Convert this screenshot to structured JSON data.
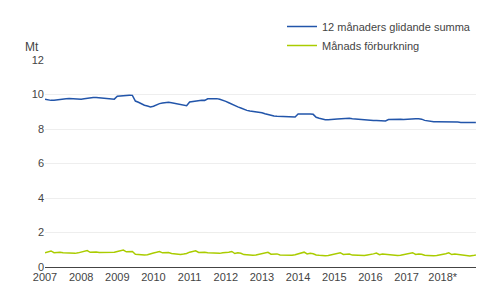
{
  "chart_data": {
    "type": "line",
    "y_label": "Mt",
    "x": [
      2007,
      2007.083333,
      2007.166667,
      2007.25,
      2007.333333,
      2007.416667,
      2007.5,
      2007.583333,
      2007.666667,
      2007.75,
      2007.833333,
      2007.916667,
      2008,
      2008.083333,
      2008.166667,
      2008.25,
      2008.333333,
      2008.416667,
      2008.5,
      2008.583333,
      2008.666667,
      2008.75,
      2008.833333,
      2008.916667,
      2009,
      2009.083333,
      2009.166667,
      2009.25,
      2009.333333,
      2009.416667,
      2009.5,
      2009.583333,
      2009.666667,
      2009.75,
      2009.833333,
      2009.916667,
      2010,
      2010.083333,
      2010.166667,
      2010.25,
      2010.333333,
      2010.416667,
      2010.5,
      2010.583333,
      2010.666667,
      2010.75,
      2010.833333,
      2010.916667,
      2011,
      2011.083333,
      2011.166667,
      2011.25,
      2011.333333,
      2011.416667,
      2011.5,
      2011.583333,
      2011.666667,
      2011.75,
      2011.833333,
      2011.916667,
      2012,
      2012.083333,
      2012.166667,
      2012.25,
      2012.333333,
      2012.416667,
      2012.5,
      2012.583333,
      2012.666667,
      2012.75,
      2012.833333,
      2012.916667,
      2013,
      2013.083333,
      2013.166667,
      2013.25,
      2013.333333,
      2013.416667,
      2013.5,
      2013.583333,
      2013.666667,
      2013.75,
      2013.833333,
      2013.916667,
      2014,
      2014.083333,
      2014.166667,
      2014.25,
      2014.333333,
      2014.416667,
      2014.5,
      2014.583333,
      2014.666667,
      2014.75,
      2014.833333,
      2014.916667,
      2015,
      2015.083333,
      2015.166667,
      2015.25,
      2015.333333,
      2015.416667,
      2015.5,
      2015.583333,
      2015.666667,
      2015.75,
      2015.833333,
      2015.916667,
      2016,
      2016.083333,
      2016.166667,
      2016.25,
      2016.333333,
      2016.416667,
      2016.5,
      2016.583333,
      2016.666667,
      2016.75,
      2016.833333,
      2016.916667,
      2017,
      2017.083333,
      2017.166667,
      2017.25,
      2017.333333,
      2017.416667,
      2017.5,
      2017.583333,
      2017.666667,
      2017.75,
      2017.833333,
      2017.916667,
      2018,
      2018.083333,
      2018.166667,
      2018.25,
      2018.333333,
      2018.416667,
      2018.5,
      2018.583333,
      2018.666667,
      2018.75,
      2018.833333,
      2018.916667
    ],
    "series": [
      {
        "name": "12 månaders glidande summa",
        "color": "#2255aa",
        "values": [
          9.73,
          9.69,
          9.66,
          9.67,
          9.68,
          9.7,
          9.73,
          9.75,
          9.77,
          9.76,
          9.74,
          9.72,
          9.73,
          9.76,
          9.79,
          9.81,
          9.82,
          9.82,
          9.8,
          9.78,
          9.77,
          9.75,
          9.74,
          9.73,
          9.9,
          9.92,
          9.94,
          9.95,
          9.96,
          9.95,
          9.62,
          9.55,
          9.45,
          9.38,
          9.33,
          9.28,
          9.32,
          9.4,
          9.47,
          9.51,
          9.54,
          9.55,
          9.52,
          9.48,
          9.44,
          9.41,
          9.38,
          9.35,
          9.57,
          9.6,
          9.63,
          9.65,
          9.67,
          9.66,
          9.75,
          9.76,
          9.77,
          9.76,
          9.72,
          9.68,
          9.6,
          9.52,
          9.43,
          9.35,
          9.28,
          9.22,
          9.14,
          9.08,
          9.04,
          9.02,
          9.01,
          9.0,
          8.94,
          8.88,
          8.83,
          8.79,
          8.76,
          8.74,
          8.73,
          8.72,
          8.71,
          8.7,
          8.7,
          8.7,
          8.87,
          8.88,
          8.89,
          8.88,
          8.87,
          8.85,
          8.68,
          8.62,
          8.57,
          8.54,
          8.53,
          8.53,
          8.57,
          8.58,
          8.6,
          8.61,
          8.62,
          8.62,
          8.6,
          8.58,
          8.56,
          8.54,
          8.53,
          8.52,
          8.51,
          8.5,
          8.5,
          8.49,
          8.48,
          8.47,
          8.55,
          8.56,
          8.57,
          8.57,
          8.56,
          8.55,
          8.57,
          8.58,
          8.6,
          8.6,
          8.59,
          8.57,
          8.5,
          8.46,
          8.43,
          8.42,
          8.42,
          8.42,
          8.44,
          8.44,
          8.44,
          8.43,
          8.41,
          8.4,
          8.38,
          8.37,
          8.37,
          8.37,
          8.37,
          8.38
        ]
      },
      {
        "name": "Månads förburkning",
        "color": "#aacc00",
        "values": [
          0.83,
          0.87,
          0.93,
          0.83,
          0.86,
          0.85,
          0.82,
          0.81,
          0.78,
          0.78,
          0.79,
          0.82,
          0.85,
          0.89,
          0.95,
          0.85,
          0.88,
          0.87,
          0.84,
          0.84,
          0.81,
          0.81,
          0.82,
          0.85,
          0.9,
          0.93,
          0.98,
          0.88,
          0.91,
          0.9,
          0.74,
          0.71,
          0.68,
          0.69,
          0.71,
          0.74,
          0.81,
          0.85,
          0.9,
          0.82,
          0.85,
          0.84,
          0.78,
          0.76,
          0.73,
          0.73,
          0.75,
          0.78,
          0.86,
          0.89,
          0.94,
          0.84,
          0.87,
          0.86,
          0.83,
          0.82,
          0.79,
          0.78,
          0.79,
          0.82,
          0.83,
          0.85,
          0.9,
          0.78,
          0.82,
          0.8,
          0.72,
          0.7,
          0.68,
          0.68,
          0.7,
          0.73,
          0.76,
          0.8,
          0.85,
          0.74,
          0.77,
          0.76,
          0.7,
          0.69,
          0.67,
          0.67,
          0.68,
          0.71,
          0.77,
          0.8,
          0.86,
          0.76,
          0.79,
          0.77,
          0.7,
          0.68,
          0.65,
          0.65,
          0.67,
          0.7,
          0.74,
          0.77,
          0.83,
          0.73,
          0.76,
          0.75,
          0.69,
          0.68,
          0.66,
          0.66,
          0.67,
          0.7,
          0.72,
          0.76,
          0.81,
          0.71,
          0.75,
          0.73,
          0.72,
          0.71,
          0.68,
          0.67,
          0.68,
          0.71,
          0.73,
          0.77,
          0.83,
          0.73,
          0.76,
          0.74,
          0.68,
          0.67,
          0.65,
          0.65,
          0.67,
          0.69,
          0.73,
          0.77,
          0.82,
          0.72,
          0.75,
          0.73,
          0.67,
          0.65,
          0.63,
          0.64,
          0.66,
          0.69
        ]
      }
    ],
    "xlim": [
      2007.0,
      2018.92
    ],
    "xticks": [
      2007,
      2008,
      2009,
      2010,
      2011,
      2012,
      2013,
      2014,
      2015,
      2016,
      2017,
      {
        "value": 2018,
        "label": "2018*"
      }
    ],
    "ylim": [
      0,
      12
    ],
    "yticks": [
      0,
      2,
      4,
      6,
      8,
      10,
      12
    ],
    "grid": true,
    "legend": "upper right"
  }
}
